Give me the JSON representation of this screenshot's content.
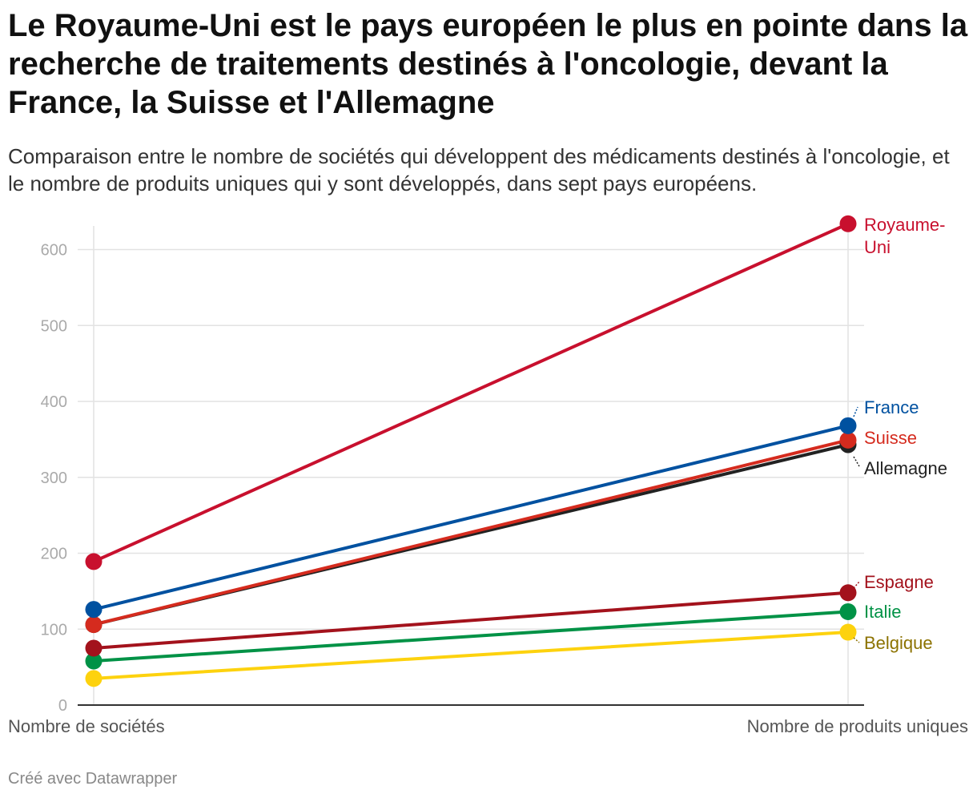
{
  "title": "Le Royaume-Uni est le pays européen le plus en pointe dans la recherche de traitements destinés à l'oncologie, devant la France, la Suisse et l'Allemagne",
  "subtitle": "Comparaison entre le nombre de sociétés qui développent des médicaments destinés à l'oncologie, et le nombre de produits uniques qui y sont développés, dans sept pays européens.",
  "footer": "Créé avec Datawrapper",
  "chart_data": {
    "type": "line",
    "subtype": "slope",
    "categories": [
      "Nombre de sociétés",
      "Nombre de produits uniques"
    ],
    "ylim": [
      0,
      630
    ],
    "yticks": [
      0,
      100,
      200,
      300,
      400,
      500,
      600
    ],
    "grid": true,
    "legend": "direct-labels-right",
    "series": [
      {
        "name": "Royaume-Uni",
        "label_lines": [
          "Royaume-",
          "Uni"
        ],
        "values": [
          189,
          634
        ],
        "color": "#c8102e",
        "label_color": "#c8102e"
      },
      {
        "name": "France",
        "label_lines": [
          "France"
        ],
        "values": [
          126,
          368
        ],
        "color": "#0051a0",
        "label_color": "#0051a0"
      },
      {
        "name": "Suisse",
        "label_lines": [
          "Suisse"
        ],
        "values": [
          106,
          349
        ],
        "color": "#d52b1e",
        "label_color": "#d52b1e"
      },
      {
        "name": "Allemagne",
        "label_lines": [
          "Allemagne"
        ],
        "values": [
          106,
          343
        ],
        "color": "#222222",
        "label_color": "#222222"
      },
      {
        "name": "Espagne",
        "label_lines": [
          "Espagne"
        ],
        "values": [
          75,
          148
        ],
        "color": "#a3121c",
        "label_color": "#a3121c"
      },
      {
        "name": "Italie",
        "label_lines": [
          "Italie"
        ],
        "values": [
          58,
          123
        ],
        "color": "#009246",
        "label_color": "#009246"
      },
      {
        "name": "Belgique",
        "label_lines": [
          "Belgique"
        ],
        "values": [
          35,
          96
        ],
        "color": "#fdd20e",
        "label_color": "#8c7200"
      }
    ]
  }
}
